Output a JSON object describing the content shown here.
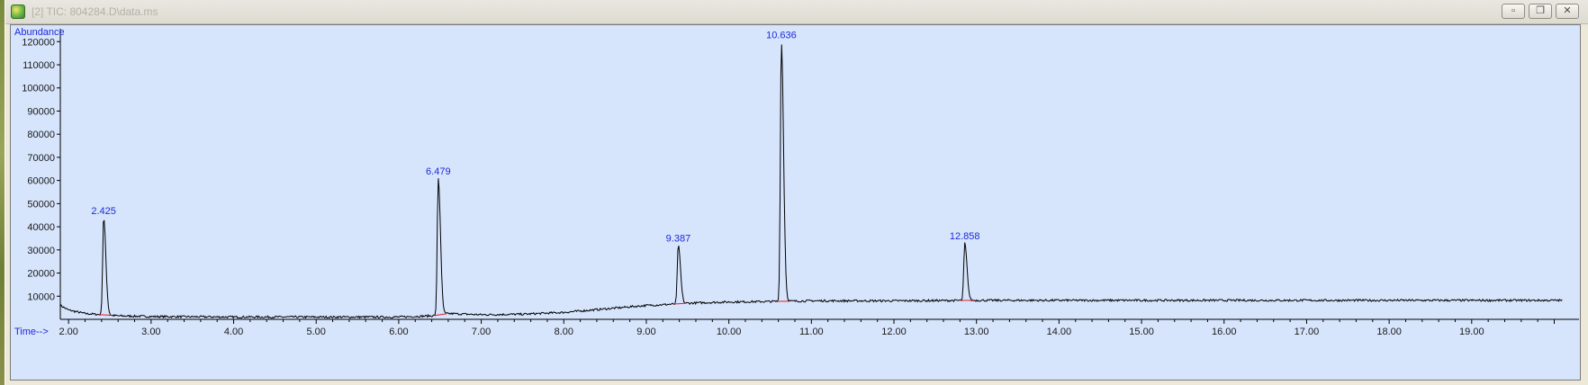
{
  "window": {
    "title": "[2] TIC: 804284.D\\data.ms",
    "icon": "chromatogram-app-icon",
    "buttons": [
      "minimize",
      "restore",
      "close"
    ]
  },
  "colors": {
    "plot_background": "#d6e4fc",
    "trace": "#000000",
    "axis_text": "#1a1a1a",
    "axis_title": "#1f2bd6",
    "peak_label": "#1f2bd6",
    "baseline_marker": "#e02020"
  },
  "chart_data": {
    "type": "line",
    "title": "",
    "ylabel": "Abundance",
    "xlabel": "Time-->",
    "xlim": [
      1.9,
      20.3
    ],
    "ylim": [
      0,
      124000
    ],
    "x_ticks": [
      "2.00",
      "3.00",
      "4.00",
      "5.00",
      "6.00",
      "7.00",
      "8.00",
      "9.00",
      "10.00",
      "11.00",
      "12.00",
      "13.00",
      "14.00",
      "15.00",
      "16.00",
      "17.00",
      "18.00",
      "19.00"
    ],
    "y_ticks": [
      "10000",
      "20000",
      "30000",
      "40000",
      "50000",
      "60000",
      "70000",
      "80000",
      "90000",
      "100000",
      "110000",
      "120000"
    ],
    "grid": false,
    "series": [
      {
        "baseline_points": [
          [
            1.9,
            6000
          ],
          [
            2.0,
            4000
          ],
          [
            2.2,
            2500
          ],
          [
            2.6,
            1500
          ],
          [
            3.0,
            1200
          ],
          [
            4.0,
            1000
          ],
          [
            5.0,
            1000
          ],
          [
            6.0,
            1000
          ],
          [
            6.4,
            1500
          ],
          [
            6.6,
            2500
          ],
          [
            7.0,
            2000
          ],
          [
            7.5,
            2200
          ],
          [
            8.0,
            3000
          ],
          [
            8.5,
            4500
          ],
          [
            9.0,
            6000
          ],
          [
            9.3,
            6500
          ],
          [
            9.5,
            7000
          ],
          [
            10.0,
            7500
          ],
          [
            10.5,
            7700
          ],
          [
            11.0,
            8000
          ],
          [
            12.0,
            8000
          ],
          [
            13.0,
            8200
          ],
          [
            14.0,
            8200
          ],
          [
            16.0,
            8200
          ],
          [
            18.0,
            8200
          ],
          [
            20.1,
            8200
          ]
        ],
        "peaks": [
          {
            "rt": 2.425,
            "height": 44000,
            "label": "2.425"
          },
          {
            "rt": 6.479,
            "height": 61000,
            "label": "6.479"
          },
          {
            "rt": 9.387,
            "height": 32000,
            "label": "9.387"
          },
          {
            "rt": 10.636,
            "height": 120000,
            "label": "10.636"
          },
          {
            "rt": 12.858,
            "height": 33000,
            "label": "12.858"
          }
        ]
      }
    ]
  }
}
